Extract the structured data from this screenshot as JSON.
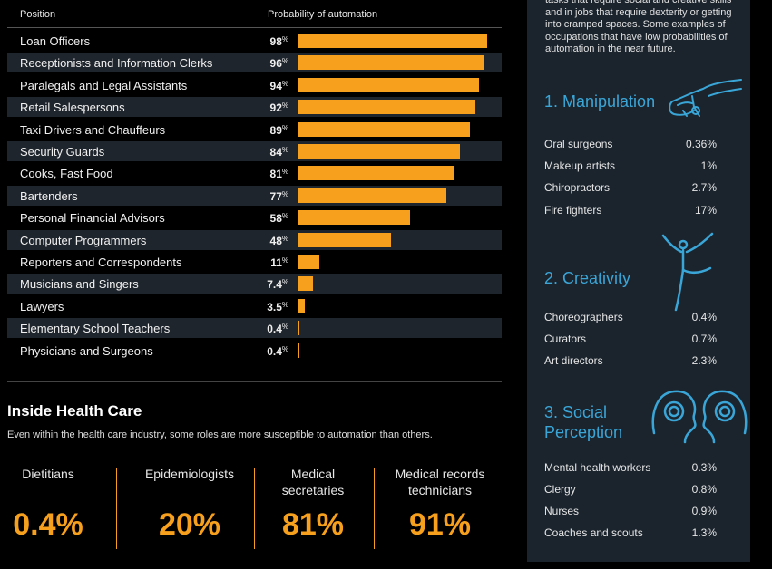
{
  "chart_data": {
    "type": "bar",
    "column_headers": {
      "position": "Position",
      "probability": "Probability of automation"
    },
    "categories": [
      "Loan Officers",
      "Receptionists and Information Clerks",
      "Paralegals and Legal Assistants",
      "Retail Salespersons",
      "Taxi Drivers and Chauffeurs",
      "Security Guards",
      "Cooks, Fast Food",
      "Bartenders",
      "Personal Financial Advisors",
      "Computer Programmers",
      "Reporters and Correspondents",
      "Musicians and Singers",
      "Lawyers",
      "Elementary School Teachers",
      "Physicians and Surgeons"
    ],
    "values": [
      98,
      96,
      94,
      92,
      89,
      84,
      81,
      77,
      58,
      48,
      11,
      7.4,
      3.5,
      0.4,
      0.4
    ],
    "labels": [
      "98",
      "96",
      "94",
      "92",
      "89",
      "84",
      "81",
      "77",
      "58",
      "48",
      "11",
      "7.4",
      "3.5",
      "0.4",
      "0.4"
    ],
    "unit": "%",
    "xlim": [
      0,
      100
    ],
    "bar_color": "#f7a01d"
  },
  "health": {
    "title": "Inside Health Care",
    "subtitle": "Even within the health care industry, some roles are more susceptible to automation than others.",
    "stats": [
      {
        "label": "Dietitians",
        "value": "0.4%"
      },
      {
        "label": "Epidemiologists",
        "value": "20%"
      },
      {
        "label": "Medical secretaries",
        "value": "81%"
      },
      {
        "label": "Medical records technicians",
        "value": "91%"
      }
    ]
  },
  "sidebar": {
    "intro": "tasks that require social and creative skills and in jobs that require dexterity or getting into cramped spaces. Some examples of occupations that have low probabilities of automation in the near future.",
    "sections": [
      {
        "title": "1. Manipulation",
        "icon": "hand-icon",
        "rows": [
          {
            "job": "Oral surgeons",
            "value": "0.36%"
          },
          {
            "job": "Makeup artists",
            "value": "1%"
          },
          {
            "job": "Chiropractors",
            "value": "2.7%"
          },
          {
            "job": "Fire fighters",
            "value": "17%"
          }
        ]
      },
      {
        "title": "2. Creativity",
        "icon": "dancer-icon",
        "rows": [
          {
            "job": "Choreographers",
            "value": "0.4%"
          },
          {
            "job": "Curators",
            "value": "0.7%"
          },
          {
            "job": "Art directors",
            "value": "2.3%"
          }
        ]
      },
      {
        "title": "3. Social Perception",
        "icon": "heads-icon",
        "rows": [
          {
            "job": "Mental health workers",
            "value": "0.3%"
          },
          {
            "job": "Clergy",
            "value": "0.8%"
          },
          {
            "job": "Nurses",
            "value": "0.9%"
          },
          {
            "job": "Coaches and scouts",
            "value": "1.3%"
          }
        ]
      }
    ],
    "accent": "#3aa6d8"
  }
}
